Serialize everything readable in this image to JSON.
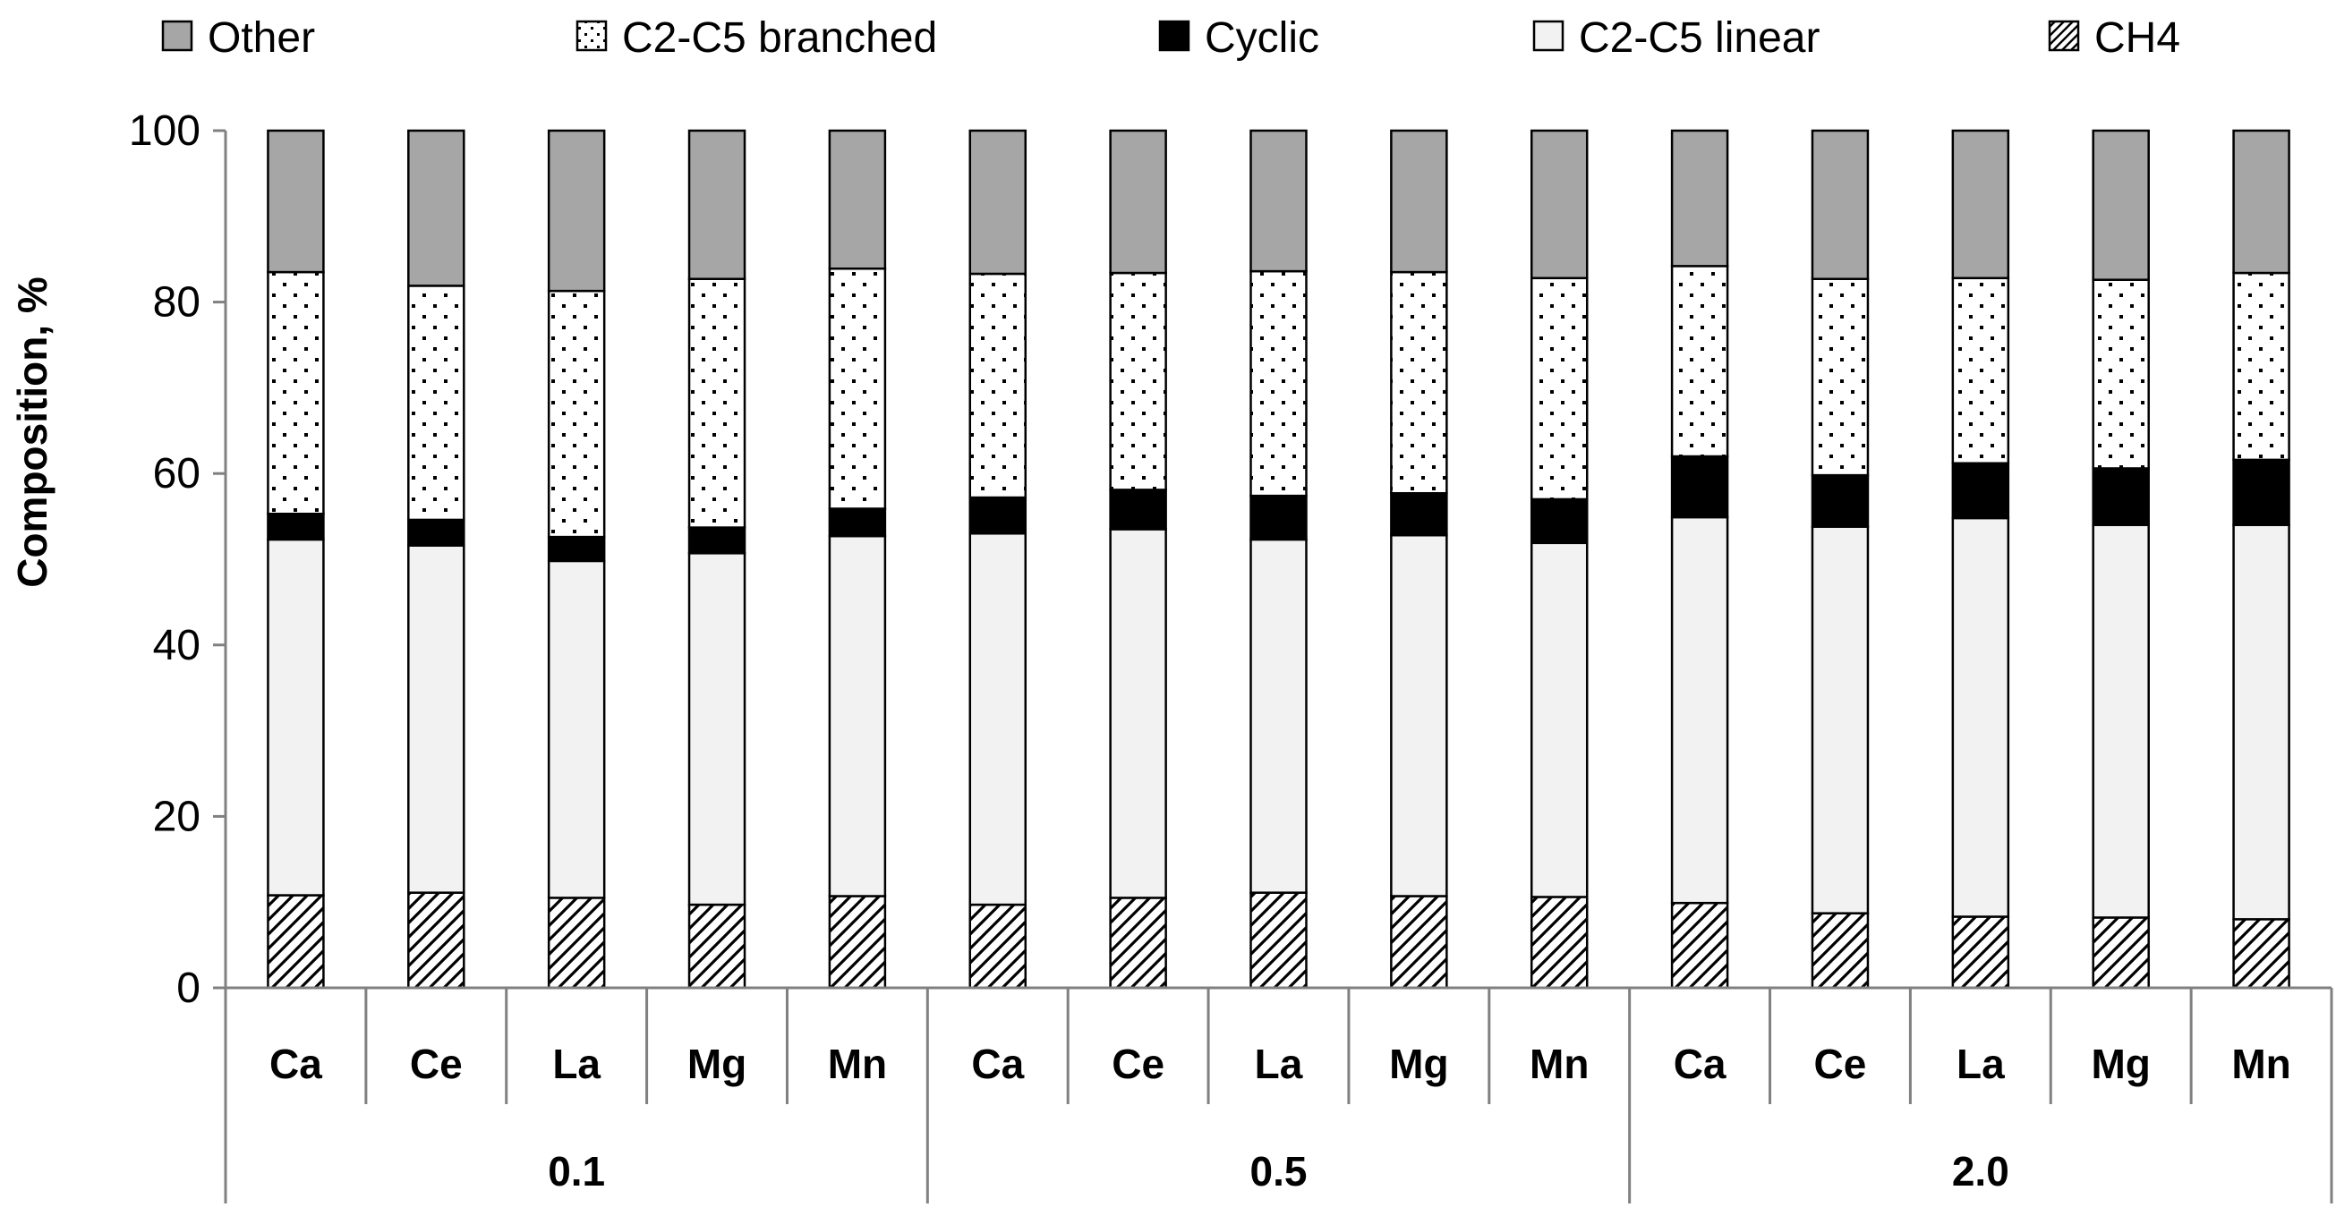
{
  "chart_data": {
    "type": "bar",
    "stacked": true,
    "ylabel": "Composition, %",
    "ylim": [
      0,
      100
    ],
    "yticks": [
      0,
      20,
      40,
      60,
      80,
      100
    ],
    "grid": false,
    "legend_position": "top",
    "groups": [
      "0.1",
      "0.5",
      "2.0"
    ],
    "categories": [
      "Ca",
      "Ce",
      "La",
      "Mg",
      "Mn",
      "Ca",
      "Ce",
      "La",
      "Mg",
      "Mn",
      "Ca",
      "Ce",
      "La",
      "Mg",
      "Mn"
    ],
    "series": [
      {
        "name": "CH4",
        "pattern": "hatch",
        "values": [
          10.8,
          11.1,
          10.5,
          9.7,
          10.7,
          9.7,
          10.5,
          11.1,
          10.7,
          10.6,
          9.9,
          8.7,
          8.3,
          8.2,
          8.0
        ]
      },
      {
        "name": "C2-C5 linear",
        "pattern": "solid-light",
        "values": [
          41.5,
          40.5,
          39.3,
          41.0,
          42.0,
          43.3,
          43.0,
          41.2,
          42.1,
          41.3,
          45.0,
          45.1,
          46.5,
          45.8,
          46.0
        ]
      },
      {
        "name": "Cyclic",
        "pattern": "solid-black",
        "values": [
          3.0,
          3.0,
          2.8,
          3.0,
          3.2,
          4.2,
          4.6,
          5.1,
          4.9,
          5.1,
          7.1,
          6.0,
          6.4,
          6.6,
          7.6
        ]
      },
      {
        "name": "C2-C5 branched",
        "pattern": "dots",
        "values": [
          28.2,
          27.3,
          28.7,
          29.0,
          28.0,
          26.1,
          25.3,
          26.2,
          25.8,
          25.8,
          22.2,
          22.9,
          21.6,
          22.0,
          21.8
        ]
      },
      {
        "name": "Other",
        "pattern": "solid-gray",
        "values": [
          16.5,
          18.1,
          18.7,
          17.3,
          16.1,
          16.7,
          16.6,
          16.4,
          16.5,
          17.2,
          15.8,
          17.3,
          17.2,
          17.4,
          16.6
        ]
      }
    ],
    "legend_order": [
      "Other",
      "C2-C5 branched",
      "Cyclic",
      "C2-C5 linear",
      "CH4"
    ],
    "colors": {
      "Other": "#a6a6a6",
      "C2-C5 branched": "#ffffff",
      "Cyclic": "#000000",
      "C2-C5 linear": "#f2f2f2",
      "CH4": "#ffffff",
      "axis": "#808080"
    }
  }
}
